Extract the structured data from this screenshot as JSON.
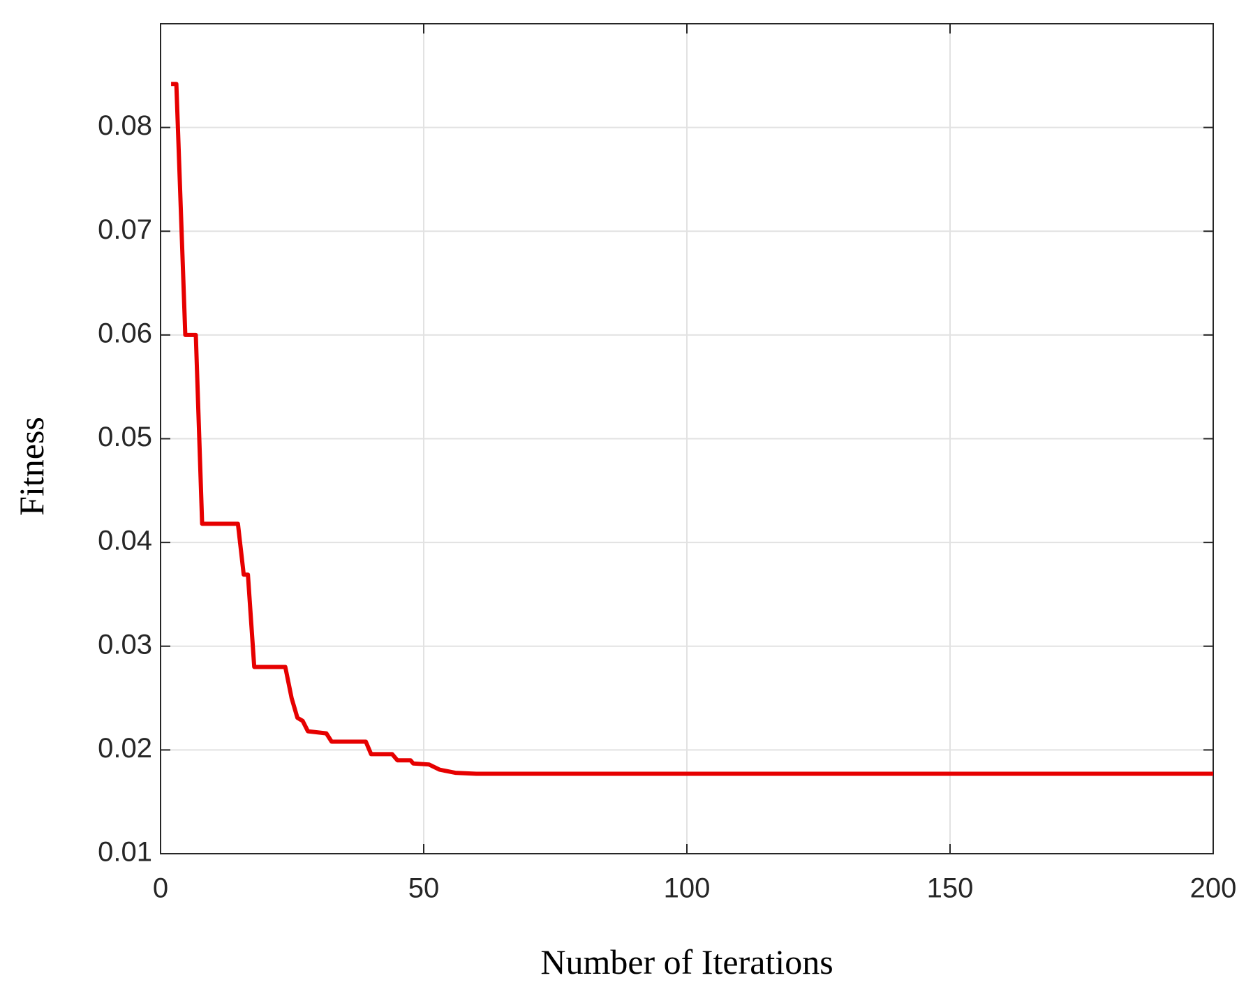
{
  "chart_data": {
    "type": "line",
    "xlabel": "Number of Iterations",
    "ylabel": "Fitness",
    "x": [
      2,
      3,
      4.7,
      6.7,
      7.9,
      14.7,
      15.8,
      16.6,
      17.8,
      23.7,
      24.9,
      26,
      27,
      28,
      31.5,
      32.5,
      39,
      40,
      44,
      45,
      47.5,
      48,
      51,
      53,
      56,
      60,
      200
    ],
    "series": [
      {
        "color": "#e60000",
        "values": [
          0.0842,
          0.0842,
          0.06,
          0.06,
          0.0418,
          0.0418,
          0.0369,
          0.0369,
          0.028,
          0.028,
          0.025,
          0.0231,
          0.0228,
          0.0218,
          0.0216,
          0.0208,
          0.0208,
          0.0196,
          0.0196,
          0.019,
          0.019,
          0.0187,
          0.0186,
          0.0181,
          0.0178,
          0.0177,
          0.0177
        ]
      }
    ],
    "xlim": [
      0,
      200
    ],
    "xticks": [
      0,
      50,
      100,
      150,
      200
    ],
    "ylim": [
      0.01,
      0.09
    ],
    "yticks": [
      0.01,
      0.02,
      0.03,
      0.04,
      0.05,
      0.06,
      0.07,
      0.08
    ],
    "grid": true
  }
}
